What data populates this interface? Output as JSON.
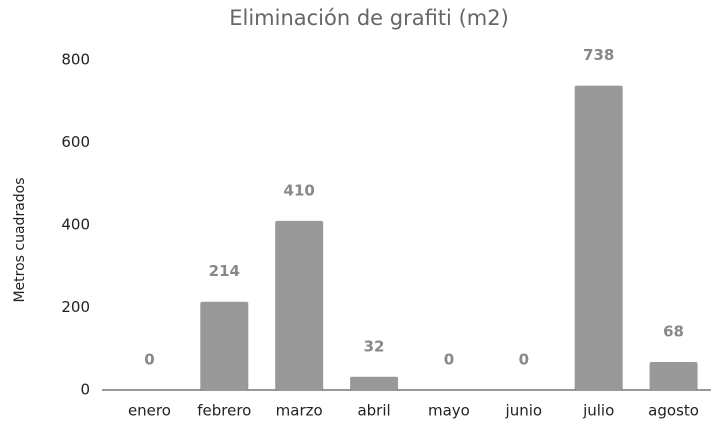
{
  "chart_data": {
    "type": "bar",
    "title": "Eliminación de grafiti (m2)",
    "y_label": "Metros cuadrados",
    "categories": [
      "enero",
      "febrero",
      "marzo",
      "abril",
      "mayo",
      "junio",
      "julio",
      "agosto"
    ],
    "values": [
      0,
      214,
      410,
      32,
      0,
      0,
      738,
      68
    ],
    "color": "#999999",
    "ylim": [
      0,
      800
    ],
    "yticks": [
      0,
      200,
      400,
      600,
      800
    ],
    "grid": false,
    "data_labels": true
  }
}
